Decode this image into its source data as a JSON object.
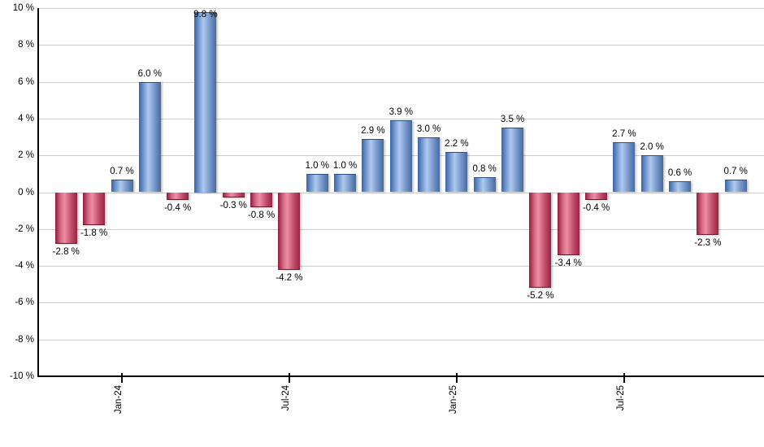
{
  "chart_data": {
    "type": "bar",
    "title": "",
    "xlabel": "",
    "ylabel": "",
    "unit": "%",
    "ylim": [
      -10,
      10
    ],
    "y_tick_step": 2,
    "grid": true,
    "legend": false,
    "values": [
      -2.8,
      -1.8,
      0.7,
      6.0,
      -0.4,
      9.8,
      -0.3,
      -0.8,
      -4.2,
      1.0,
      1.0,
      2.9,
      3.9,
      3.0,
      2.2,
      0.8,
      3.5,
      -5.2,
      -3.4,
      -0.4,
      2.7,
      2.0,
      0.6,
      -2.3,
      0.7
    ],
    "bar_value_labels": [
      "-2.8 %",
      "-1.8 %",
      "0.7 %",
      "6.0 %",
      "-0.4 %",
      "9.8 %",
      "-0.3 %",
      "-0.8 %",
      "-4.2 %",
      "1.0 %",
      "1.0 %",
      "2.9 %",
      "3.9 %",
      "3.0 %",
      "2.2 %",
      "0.8 %",
      "3.5 %",
      "-5.2 %",
      "-3.4 %",
      "-0.4 %",
      "2.7 %",
      "2.0 %",
      "0.6 %",
      "-2.3 %",
      "0.7 %"
    ],
    "y_axis_tick_labels": [
      "10 %",
      "8 %",
      "6 %",
      "4 %",
      "2 %",
      "0 %",
      "-2 %",
      "-4 %",
      "-6 %",
      "-8 %",
      "-10 %"
    ],
    "x_axis_ticks": [
      {
        "bar_index": 2,
        "label": "Jan-24"
      },
      {
        "bar_index": 8,
        "label": "Jul-24"
      },
      {
        "bar_index": 14,
        "label": "Jan-25"
      },
      {
        "bar_index": 20,
        "label": "Jul-25"
      }
    ],
    "colors": {
      "positive_bar_dark": "#3c63a4",
      "positive_bar_light": "#b0c9ee",
      "negative_bar_dark": "#8e1e3e",
      "negative_bar_light": "#ec8fa4",
      "gridline": "#cccccc",
      "axis": "#000000",
      "label_text": "#000000",
      "background": "#ffffff"
    }
  }
}
